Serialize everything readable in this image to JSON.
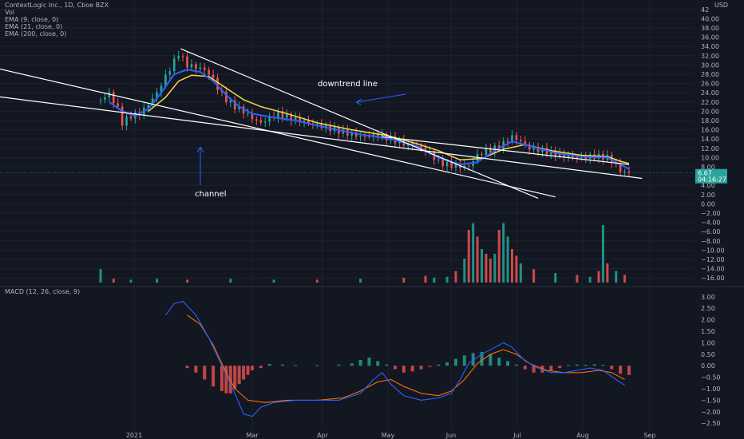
{
  "header": {
    "title": "ContextLogic Inc., 1D, Cboe BZX",
    "lines": [
      "Vol",
      "EMA (9, close, 0)",
      "EMA (21, close, 0)",
      "EMA (200, close, 0)"
    ],
    "currency": "USD",
    "price_label": "6.67",
    "countdown_label": "04:16:27"
  },
  "macd_header": {
    "title": "MACD (12, 26, close, 9)"
  },
  "colors": {
    "background": "#131722",
    "up": "#26a69a",
    "down": "#ef5350",
    "ema9": "#2962ff",
    "ema21": "#f9d648",
    "macd": "#2962ff",
    "signal": "#ff6d00",
    "annotation": "#ffffff",
    "price_tag": "#26a69a"
  },
  "annotations": {
    "downtrend_label": "downtrend line",
    "channel_label": "channel"
  },
  "chart_data": [
    {
      "type": "candlestick",
      "title": "ContextLogic Inc., 1D, Cboe BZX",
      "x_labels": [
        "2021",
        "Mar",
        "Apr",
        "May",
        "Jun",
        "Jul",
        "Aug",
        "Sep"
      ],
      "y_ticks": [
        -16,
        -14,
        -12,
        -10,
        -8,
        -6,
        -4,
        -2,
        0,
        2,
        4,
        6,
        8,
        10,
        12,
        14,
        16,
        18,
        20,
        22,
        24,
        26,
        28,
        30,
        32,
        34,
        36,
        38,
        40,
        42
      ],
      "y_tick_labels": [
        "−16.00",
        "−14.00",
        "−12.00",
        "−10.00",
        "−8.00",
        "−6.00",
        "−4.00",
        "−2.00",
        "0.00",
        "2.00",
        "4.00",
        "6.00",
        "8.00",
        "10.00",
        "12.00",
        "14.00",
        "16.00",
        "18.00",
        "20.00",
        "22.00",
        "24.00",
        "26.00",
        "28.00",
        "30.00",
        "32.00",
        "34.00",
        "36.00",
        "38.00",
        "40.00",
        "42"
      ],
      "ylim": [
        -17,
        43
      ],
      "last_price": 6.67,
      "price_path": [
        [
          0,
          22.5
        ],
        [
          4,
          23.8
        ],
        [
          8,
          20.5
        ],
        [
          10,
          17.5
        ],
        [
          14,
          19
        ],
        [
          18,
          19.5
        ],
        [
          22,
          21.5
        ],
        [
          26,
          24
        ],
        [
          30,
          27.5
        ],
        [
          33,
          30
        ],
        [
          36,
          32.5
        ],
        [
          40,
          30
        ],
        [
          44,
          29.5
        ],
        [
          48,
          29
        ],
        [
          52,
          27
        ],
        [
          54,
          25
        ],
        [
          58,
          22.5
        ],
        [
          62,
          21
        ],
        [
          66,
          20
        ],
        [
          70,
          18.5
        ],
        [
          74,
          17.5
        ],
        [
          78,
          18.5
        ],
        [
          82,
          19.5
        ],
        [
          88,
          18.5
        ],
        [
          96,
          17.5
        ],
        [
          104,
          16.5
        ],
        [
          112,
          15.5
        ],
        [
          120,
          14.5
        ],
        [
          128,
          14.8
        ],
        [
          134,
          14
        ],
        [
          140,
          13
        ],
        [
          146,
          12.5
        ],
        [
          152,
          11
        ],
        [
          156,
          9
        ],
        [
          160,
          8.5
        ],
        [
          166,
          8
        ],
        [
          170,
          8.2
        ],
        [
          174,
          10.5
        ],
        [
          178,
          11.5
        ],
        [
          182,
          12
        ],
        [
          186,
          13
        ],
        [
          190,
          14.5
        ],
        [
          194,
          13.5
        ],
        [
          198,
          12
        ],
        [
          204,
          11.5
        ],
        [
          210,
          10.8
        ],
        [
          216,
          10.2
        ],
        [
          222,
          10
        ],
        [
          228,
          10.3
        ],
        [
          234,
          10
        ],
        [
          237,
          9
        ],
        [
          240,
          7.2
        ],
        [
          244,
          6.67
        ]
      ],
      "price_days_max": 244,
      "ema9": [
        [
          4,
          22
        ],
        [
          10,
          20
        ],
        [
          16,
          19
        ],
        [
          22,
          20.5
        ],
        [
          28,
          24
        ],
        [
          34,
          28
        ],
        [
          40,
          29
        ],
        [
          46,
          28.5
        ],
        [
          52,
          26.5
        ],
        [
          58,
          23.5
        ],
        [
          64,
          21
        ],
        [
          70,
          19.5
        ],
        [
          78,
          18.8
        ],
        [
          90,
          18
        ],
        [
          104,
          16.5
        ],
        [
          120,
          15
        ],
        [
          134,
          14
        ],
        [
          146,
          12.5
        ],
        [
          156,
          10
        ],
        [
          166,
          8.5
        ],
        [
          174,
          9
        ],
        [
          182,
          11.5
        ],
        [
          190,
          13.5
        ],
        [
          198,
          12.5
        ],
        [
          210,
          11
        ],
        [
          222,
          10.2
        ],
        [
          234,
          10
        ],
        [
          240,
          8.5
        ],
        [
          244,
          7.5
        ]
      ],
      "ema21": [
        [
          22,
          20
        ],
        [
          30,
          23
        ],
        [
          36,
          26.5
        ],
        [
          42,
          27.8
        ],
        [
          50,
          27.5
        ],
        [
          58,
          25
        ],
        [
          66,
          22.5
        ],
        [
          74,
          21
        ],
        [
          86,
          19.5
        ],
        [
          100,
          17.5
        ],
        [
          116,
          16
        ],
        [
          132,
          14.8
        ],
        [
          146,
          13
        ],
        [
          156,
          11.5
        ],
        [
          166,
          9.5
        ],
        [
          176,
          9.8
        ],
        [
          186,
          11.8
        ],
        [
          196,
          12.8
        ],
        [
          208,
          11.5
        ],
        [
          222,
          10.5
        ],
        [
          234,
          10.2
        ],
        [
          240,
          9.2
        ],
        [
          244,
          8.7
        ]
      ],
      "volume_ylim": [
        0,
        100
      ],
      "volume": [
        [
          0,
          0.14,
          1
        ],
        [
          6,
          0.04,
          0
        ],
        [
          14,
          0.03,
          1
        ],
        [
          26,
          0.04,
          1
        ],
        [
          40,
          0.03,
          0
        ],
        [
          60,
          0.04,
          1
        ],
        [
          80,
          0.03,
          1
        ],
        [
          100,
          0.03,
          0
        ],
        [
          120,
          0.04,
          1
        ],
        [
          140,
          0.05,
          0
        ],
        [
          150,
          0.07,
          0
        ],
        [
          154,
          0.05,
          1
        ],
        [
          160,
          0.06,
          1
        ],
        [
          164,
          0.12,
          0
        ],
        [
          168,
          0.25,
          1
        ],
        [
          170,
          0.55,
          0
        ],
        [
          172,
          0.62,
          1
        ],
        [
          174,
          0.48,
          0
        ],
        [
          176,
          0.35,
          1
        ],
        [
          178,
          0.3,
          0
        ],
        [
          180,
          0.25,
          0
        ],
        [
          182,
          0.3,
          1
        ],
        [
          184,
          0.55,
          0
        ],
        [
          186,
          0.62,
          1
        ],
        [
          188,
          0.48,
          1
        ],
        [
          190,
          0.35,
          0
        ],
        [
          192,
          0.28,
          0
        ],
        [
          194,
          0.2,
          1
        ],
        [
          200,
          0.14,
          0
        ],
        [
          210,
          0.1,
          1
        ],
        [
          220,
          0.08,
          0
        ],
        [
          226,
          0.06,
          1
        ],
        [
          230,
          0.12,
          0
        ],
        [
          232,
          0.6,
          1
        ],
        [
          234,
          0.2,
          0
        ],
        [
          238,
          0.12,
          1
        ],
        [
          242,
          0.08,
          0
        ]
      ],
      "macd_ylim": [
        -2.7,
        3.2
      ],
      "macd_ticks": [
        -2.5,
        -2,
        -1.5,
        -1,
        -0.5,
        0,
        0.5,
        1,
        1.5,
        2,
        2.5,
        3
      ],
      "macd_tick_labels": [
        "−2.50",
        "−2.00",
        "−1.50",
        "−1.00",
        "−0.50",
        "0.00",
        "0.50",
        "1.00",
        "1.50",
        "2.00",
        "2.50",
        "3.00"
      ],
      "macd": [
        [
          30,
          2.2
        ],
        [
          34,
          2.7
        ],
        [
          38,
          2.8
        ],
        [
          44,
          2.2
        ],
        [
          50,
          1.2
        ],
        [
          56,
          0
        ],
        [
          62,
          -1.2
        ],
        [
          66,
          -2.1
        ],
        [
          70,
          -2.2
        ],
        [
          74,
          -1.8
        ],
        [
          80,
          -1.6
        ],
        [
          90,
          -1.5
        ],
        [
          100,
          -1.5
        ],
        [
          110,
          -1.5
        ],
        [
          120,
          -1.2
        ],
        [
          126,
          -0.6
        ],
        [
          130,
          -0.3
        ],
        [
          134,
          -0.8
        ],
        [
          140,
          -1.3
        ],
        [
          148,
          -1.5
        ],
        [
          156,
          -1.4
        ],
        [
          162,
          -1.2
        ],
        [
          166,
          -0.6
        ],
        [
          170,
          0.1
        ],
        [
          176,
          0.5
        ],
        [
          182,
          0.8
        ],
        [
          186,
          1
        ],
        [
          190,
          0.8
        ],
        [
          196,
          0.2
        ],
        [
          202,
          -0.1
        ],
        [
          208,
          -0.3
        ],
        [
          214,
          -0.3
        ],
        [
          220,
          -0.2
        ],
        [
          226,
          -0.1
        ],
        [
          232,
          -0.2
        ],
        [
          238,
          -0.6
        ],
        [
          242,
          -0.85
        ]
      ],
      "signal": [
        [
          40,
          2.2
        ],
        [
          46,
          1.8
        ],
        [
          52,
          0.9
        ],
        [
          58,
          -0.3
        ],
        [
          62,
          -1
        ],
        [
          68,
          -1.5
        ],
        [
          76,
          -1.6
        ],
        [
          86,
          -1.5
        ],
        [
          100,
          -1.5
        ],
        [
          112,
          -1.4
        ],
        [
          120,
          -1.1
        ],
        [
          128,
          -0.7
        ],
        [
          134,
          -0.6
        ],
        [
          140,
          -0.9
        ],
        [
          148,
          -1.2
        ],
        [
          156,
          -1.3
        ],
        [
          162,
          -1.1
        ],
        [
          168,
          -0.6
        ],
        [
          174,
          0.1
        ],
        [
          180,
          0.5
        ],
        [
          186,
          0.7
        ],
        [
          192,
          0.5
        ],
        [
          198,
          0.1
        ],
        [
          206,
          -0.2
        ],
        [
          214,
          -0.3
        ],
        [
          222,
          -0.3
        ],
        [
          230,
          -0.2
        ],
        [
          236,
          -0.3
        ],
        [
          242,
          -0.6
        ]
      ],
      "histogram": [
        [
          40,
          -0.1
        ],
        [
          44,
          -0.3
        ],
        [
          48,
          -0.6
        ],
        [
          52,
          -0.9
        ],
        [
          56,
          -1.1
        ],
        [
          58,
          -1.2
        ],
        [
          60,
          -1.2
        ],
        [
          62,
          -1.0
        ],
        [
          64,
          -0.8
        ],
        [
          66,
          -0.6
        ],
        [
          68,
          -0.4
        ],
        [
          70,
          -0.2
        ],
        [
          74,
          -0.1
        ],
        [
          78,
          0.08
        ],
        [
          84,
          0.05
        ],
        [
          90,
          0.03
        ],
        [
          100,
          0.02
        ],
        [
          110,
          0.05
        ],
        [
          116,
          0.1
        ],
        [
          120,
          0.25
        ],
        [
          124,
          0.35
        ],
        [
          128,
          0.2
        ],
        [
          132,
          0.05
        ],
        [
          136,
          -0.15
        ],
        [
          140,
          -0.3
        ],
        [
          144,
          -0.25
        ],
        [
          148,
          -0.15
        ],
        [
          152,
          -0.05
        ],
        [
          156,
          0.05
        ],
        [
          160,
          0.15
        ],
        [
          164,
          0.3
        ],
        [
          168,
          0.45
        ],
        [
          172,
          0.55
        ],
        [
          176,
          0.6
        ],
        [
          180,
          0.5
        ],
        [
          184,
          0.35
        ],
        [
          188,
          0.2
        ],
        [
          192,
          0.05
        ],
        [
          196,
          -0.15
        ],
        [
          200,
          -0.3
        ],
        [
          204,
          -0.3
        ],
        [
          208,
          -0.2
        ],
        [
          212,
          -0.1
        ],
        [
          216,
          0.03
        ],
        [
          220,
          0.05
        ],
        [
          224,
          0.04
        ],
        [
          228,
          0.06
        ],
        [
          232,
          0.04
        ],
        [
          236,
          -0.15
        ],
        [
          240,
          -0.35
        ],
        [
          244,
          -0.4
        ]
      ]
    }
  ]
}
